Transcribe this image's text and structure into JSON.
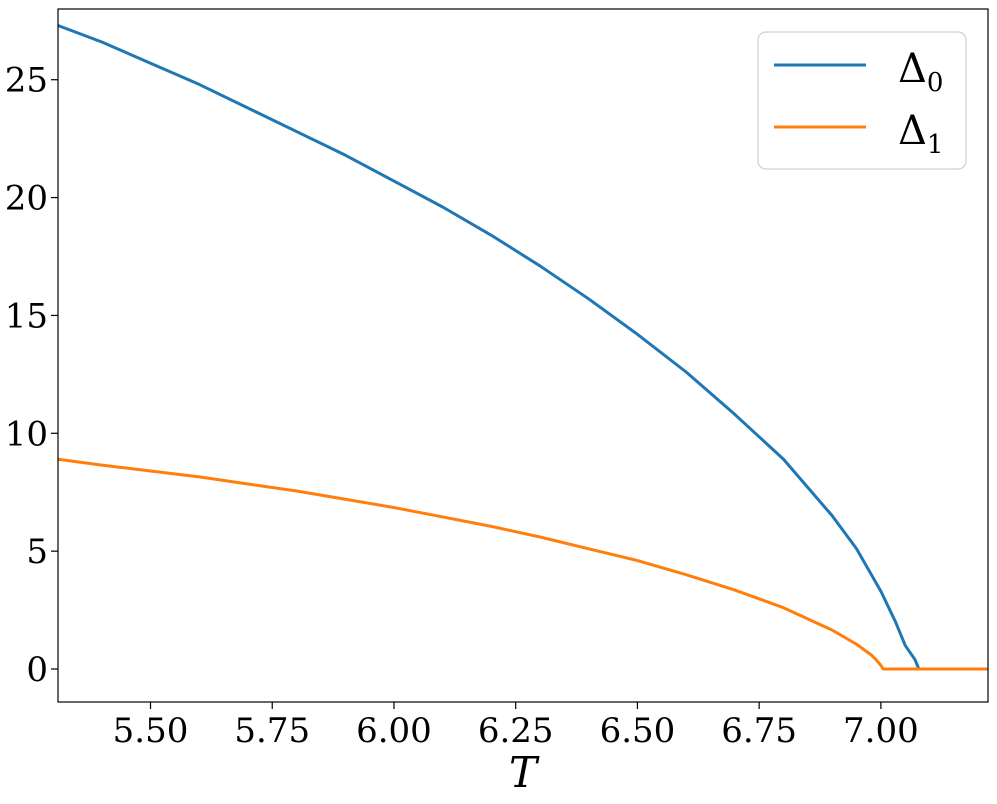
{
  "chart_data": {
    "type": "line",
    "title": "",
    "xlabel": "T",
    "ylabel": "",
    "xlim": [
      5.31,
      7.22
    ],
    "ylim": [
      -1.4,
      28.0
    ],
    "xticks": [
      5.5,
      5.75,
      6.0,
      6.25,
      6.5,
      6.75,
      7.0
    ],
    "xtick_labels": [
      "5.50",
      "5.75",
      "6.00",
      "6.25",
      "6.50",
      "6.75",
      "7.00"
    ],
    "yticks": [
      0,
      5,
      10,
      15,
      20,
      25
    ],
    "ytick_labels": [
      "0",
      "5",
      "10",
      "15",
      "20",
      "25"
    ],
    "grid": false,
    "legend_position": "top-right",
    "series": [
      {
        "name": "Δ0",
        "label_main": "Δ",
        "label_sub": "0",
        "color": "#1f77b4",
        "x": [
          5.31,
          5.4,
          5.5,
          5.6,
          5.7,
          5.8,
          5.9,
          6.0,
          6.1,
          6.2,
          6.3,
          6.4,
          6.5,
          6.6,
          6.7,
          6.8,
          6.9,
          6.95,
          7.0,
          7.03,
          7.05,
          7.07,
          7.078,
          7.08,
          7.1,
          7.15,
          7.22
        ],
        "values": [
          27.3,
          26.6,
          25.7,
          24.8,
          23.8,
          22.8,
          21.8,
          20.7,
          19.6,
          18.4,
          17.1,
          15.7,
          14.2,
          12.6,
          10.8,
          8.9,
          6.5,
          5.1,
          3.3,
          2.0,
          1.0,
          0.4,
          0.0,
          0.0,
          0.0,
          0.0,
          0.0
        ]
      },
      {
        "name": "Δ1",
        "label_main": "Δ",
        "label_sub": "1",
        "color": "#ff7f0e",
        "x": [
          5.31,
          5.4,
          5.5,
          5.6,
          5.7,
          5.8,
          5.9,
          6.0,
          6.1,
          6.2,
          6.3,
          6.4,
          6.5,
          6.6,
          6.7,
          6.8,
          6.9,
          6.95,
          6.98,
          6.99,
          7.0,
          7.005,
          7.05,
          7.1,
          7.15,
          7.22
        ],
        "values": [
          8.9,
          8.65,
          8.4,
          8.15,
          7.85,
          7.55,
          7.2,
          6.85,
          6.45,
          6.05,
          5.6,
          5.1,
          4.6,
          4.0,
          3.35,
          2.6,
          1.65,
          1.05,
          0.6,
          0.4,
          0.15,
          0.0,
          0.0,
          0.0,
          0.0,
          0.0
        ]
      }
    ]
  }
}
